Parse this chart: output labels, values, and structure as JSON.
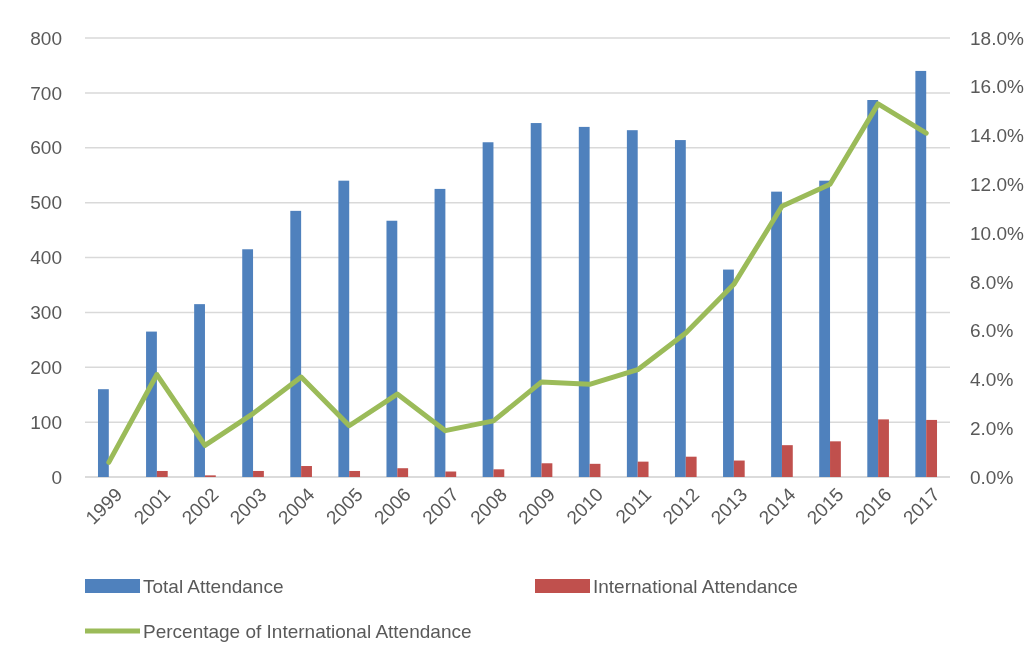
{
  "chart_data": {
    "type": "bar",
    "categories": [
      "1999",
      "2001",
      "2002",
      "2003",
      "2004",
      "2005",
      "2006",
      "2007",
      "2008",
      "2009",
      "2010",
      "2011",
      "2012",
      "2013",
      "2014",
      "2015",
      "2016",
      "2017"
    ],
    "series": [
      {
        "name": "Total Attendance",
        "color": "#4f81bd",
        "values": [
          160,
          265,
          315,
          415,
          485,
          540,
          467,
          525,
          610,
          645,
          638,
          632,
          614,
          378,
          520,
          540,
          687,
          740
        ]
      },
      {
        "name": "International Attendance",
        "color": "#c0504d",
        "values": [
          0,
          11,
          3,
          11,
          20,
          11,
          16,
          10,
          14,
          25,
          24,
          28,
          37,
          30,
          58,
          65,
          105,
          104
        ]
      },
      {
        "name": "Percentage of International Attendance",
        "type": "line",
        "axis": "y2",
        "color": "#9bbb59",
        "values": [
          0.6,
          4.2,
          1.3,
          2.6,
          4.1,
          2.1,
          3.4,
          1.9,
          2.3,
          3.9,
          3.8,
          4.4,
          5.9,
          7.9,
          11.1,
          12.0,
          15.3,
          14.1
        ]
      }
    ],
    "ylim": [
      0,
      800
    ],
    "yticks": [
      0,
      100,
      200,
      300,
      400,
      500,
      600,
      700,
      800
    ],
    "y2lim": [
      0,
      18
    ],
    "y2ticks": [
      {
        "value": 0,
        "label": "0.0%"
      },
      {
        "value": 2,
        "label": "2.0%"
      },
      {
        "value": 4,
        "label": "4.0%"
      },
      {
        "value": 6,
        "label": "6.0%"
      },
      {
        "value": 8,
        "label": "8.0%"
      },
      {
        "value": 10,
        "label": "10.0%"
      },
      {
        "value": 12,
        "label": "12.0%"
      },
      {
        "value": 14,
        "label": "14.0%"
      },
      {
        "value": 16,
        "label": "16.0%"
      },
      {
        "value": 18,
        "label": "18.0%"
      }
    ],
    "grid": "y",
    "legend": "bottom"
  }
}
